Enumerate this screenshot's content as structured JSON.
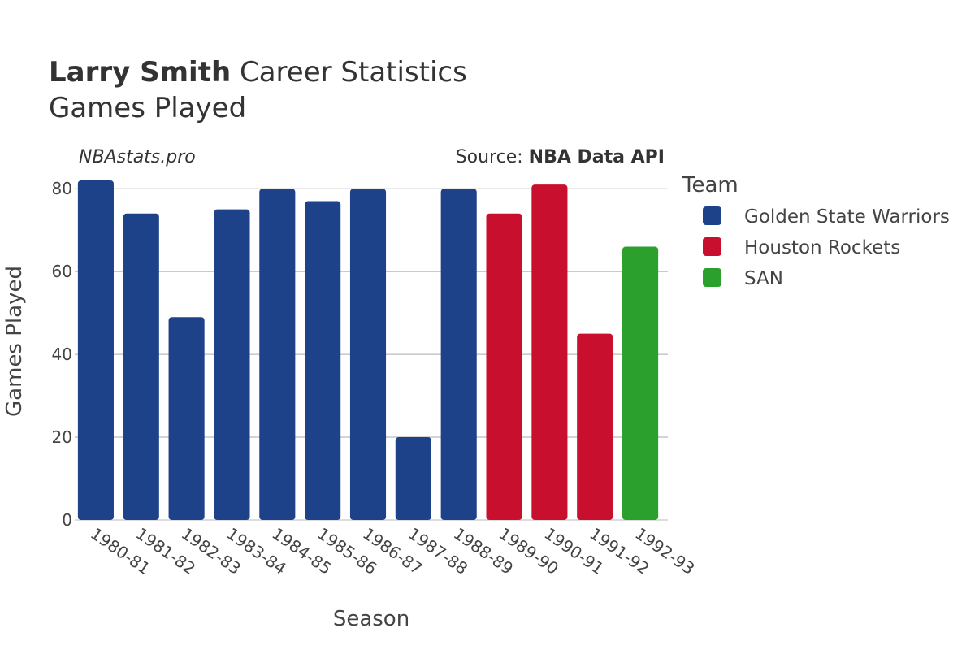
{
  "header": {
    "title_bold": "Larry Smith",
    "title_rest": "Career Statistics",
    "subtitle": "Games Played"
  },
  "annotations": {
    "site": "NBAstats.pro",
    "source_prefix": "Source: ",
    "source_name": "NBA Data API"
  },
  "legend": {
    "title": "Team",
    "items": [
      {
        "label": "Golden State Warriors",
        "color": "#1d4289"
      },
      {
        "label": "Houston Rockets",
        "color": "#c8102e"
      },
      {
        "label": "SAN",
        "color": "#2ca02c"
      }
    ]
  },
  "chart_data": {
    "type": "bar",
    "xlabel": "Season",
    "ylabel": "Games Played",
    "ylim": [
      0,
      82
    ],
    "yticks": [
      0,
      20,
      40,
      60,
      80
    ],
    "grid": true,
    "legend_position": "right",
    "categories": [
      "1980-81",
      "1981-82",
      "1982-83",
      "1983-84",
      "1984-85",
      "1985-86",
      "1986-87",
      "1987-88",
      "1988-89",
      "1989-90",
      "1990-91",
      "1991-92",
      "1992-93"
    ],
    "values": [
      82,
      74,
      49,
      75,
      80,
      77,
      80,
      20,
      80,
      74,
      81,
      45,
      66
    ],
    "teams": [
      "Golden State Warriors",
      "Golden State Warriors",
      "Golden State Warriors",
      "Golden State Warriors",
      "Golden State Warriors",
      "Golden State Warriors",
      "Golden State Warriors",
      "Golden State Warriors",
      "Golden State Warriors",
      "Houston Rockets",
      "Houston Rockets",
      "Houston Rockets",
      "SAN"
    ]
  }
}
